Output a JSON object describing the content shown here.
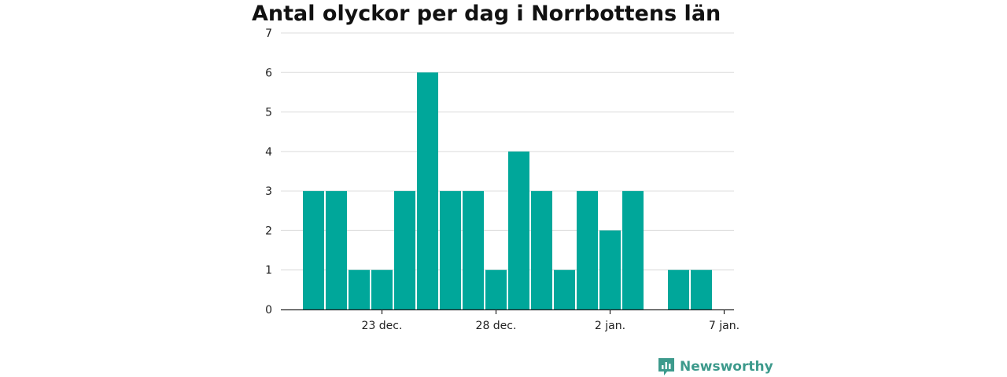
{
  "chart_data": {
    "type": "bar",
    "title": "Antal olyckor per dag i Norrbottens län",
    "xlabel": "",
    "ylabel": "",
    "x": [
      "2020-12-20",
      "2020-12-21",
      "2020-12-22",
      "2020-12-23",
      "2020-12-24",
      "2020-12-25",
      "2020-12-26",
      "2020-12-27",
      "2020-12-28",
      "2020-12-29",
      "2020-12-30",
      "2020-12-31",
      "2021-01-01",
      "2021-01-02",
      "2021-01-03",
      "2021-01-04",
      "2021-01-05",
      "2021-01-06"
    ],
    "values": [
      3,
      3,
      1,
      1,
      3,
      6,
      3,
      3,
      1,
      4,
      3,
      1,
      3,
      2,
      3,
      0,
      1,
      1
    ],
    "ylim": [
      0,
      7
    ],
    "yticks": [
      "0",
      "1",
      "2",
      "3",
      "4",
      "5",
      "6",
      "7"
    ],
    "xticks": [
      {
        "date": "2020-12-23",
        "label": "23 dec."
      },
      {
        "date": "2020-12-28",
        "label": "28 dec."
      },
      {
        "date": "2021-01-02",
        "label": "2 jan."
      },
      {
        "date": "2021-01-07",
        "label": "7 jan."
      }
    ],
    "grid": true,
    "bar_color": "#00a79a"
  },
  "logo": {
    "text": "Newsworthy",
    "color": "#3d9a8c",
    "icon": "bar-chart-icon"
  }
}
